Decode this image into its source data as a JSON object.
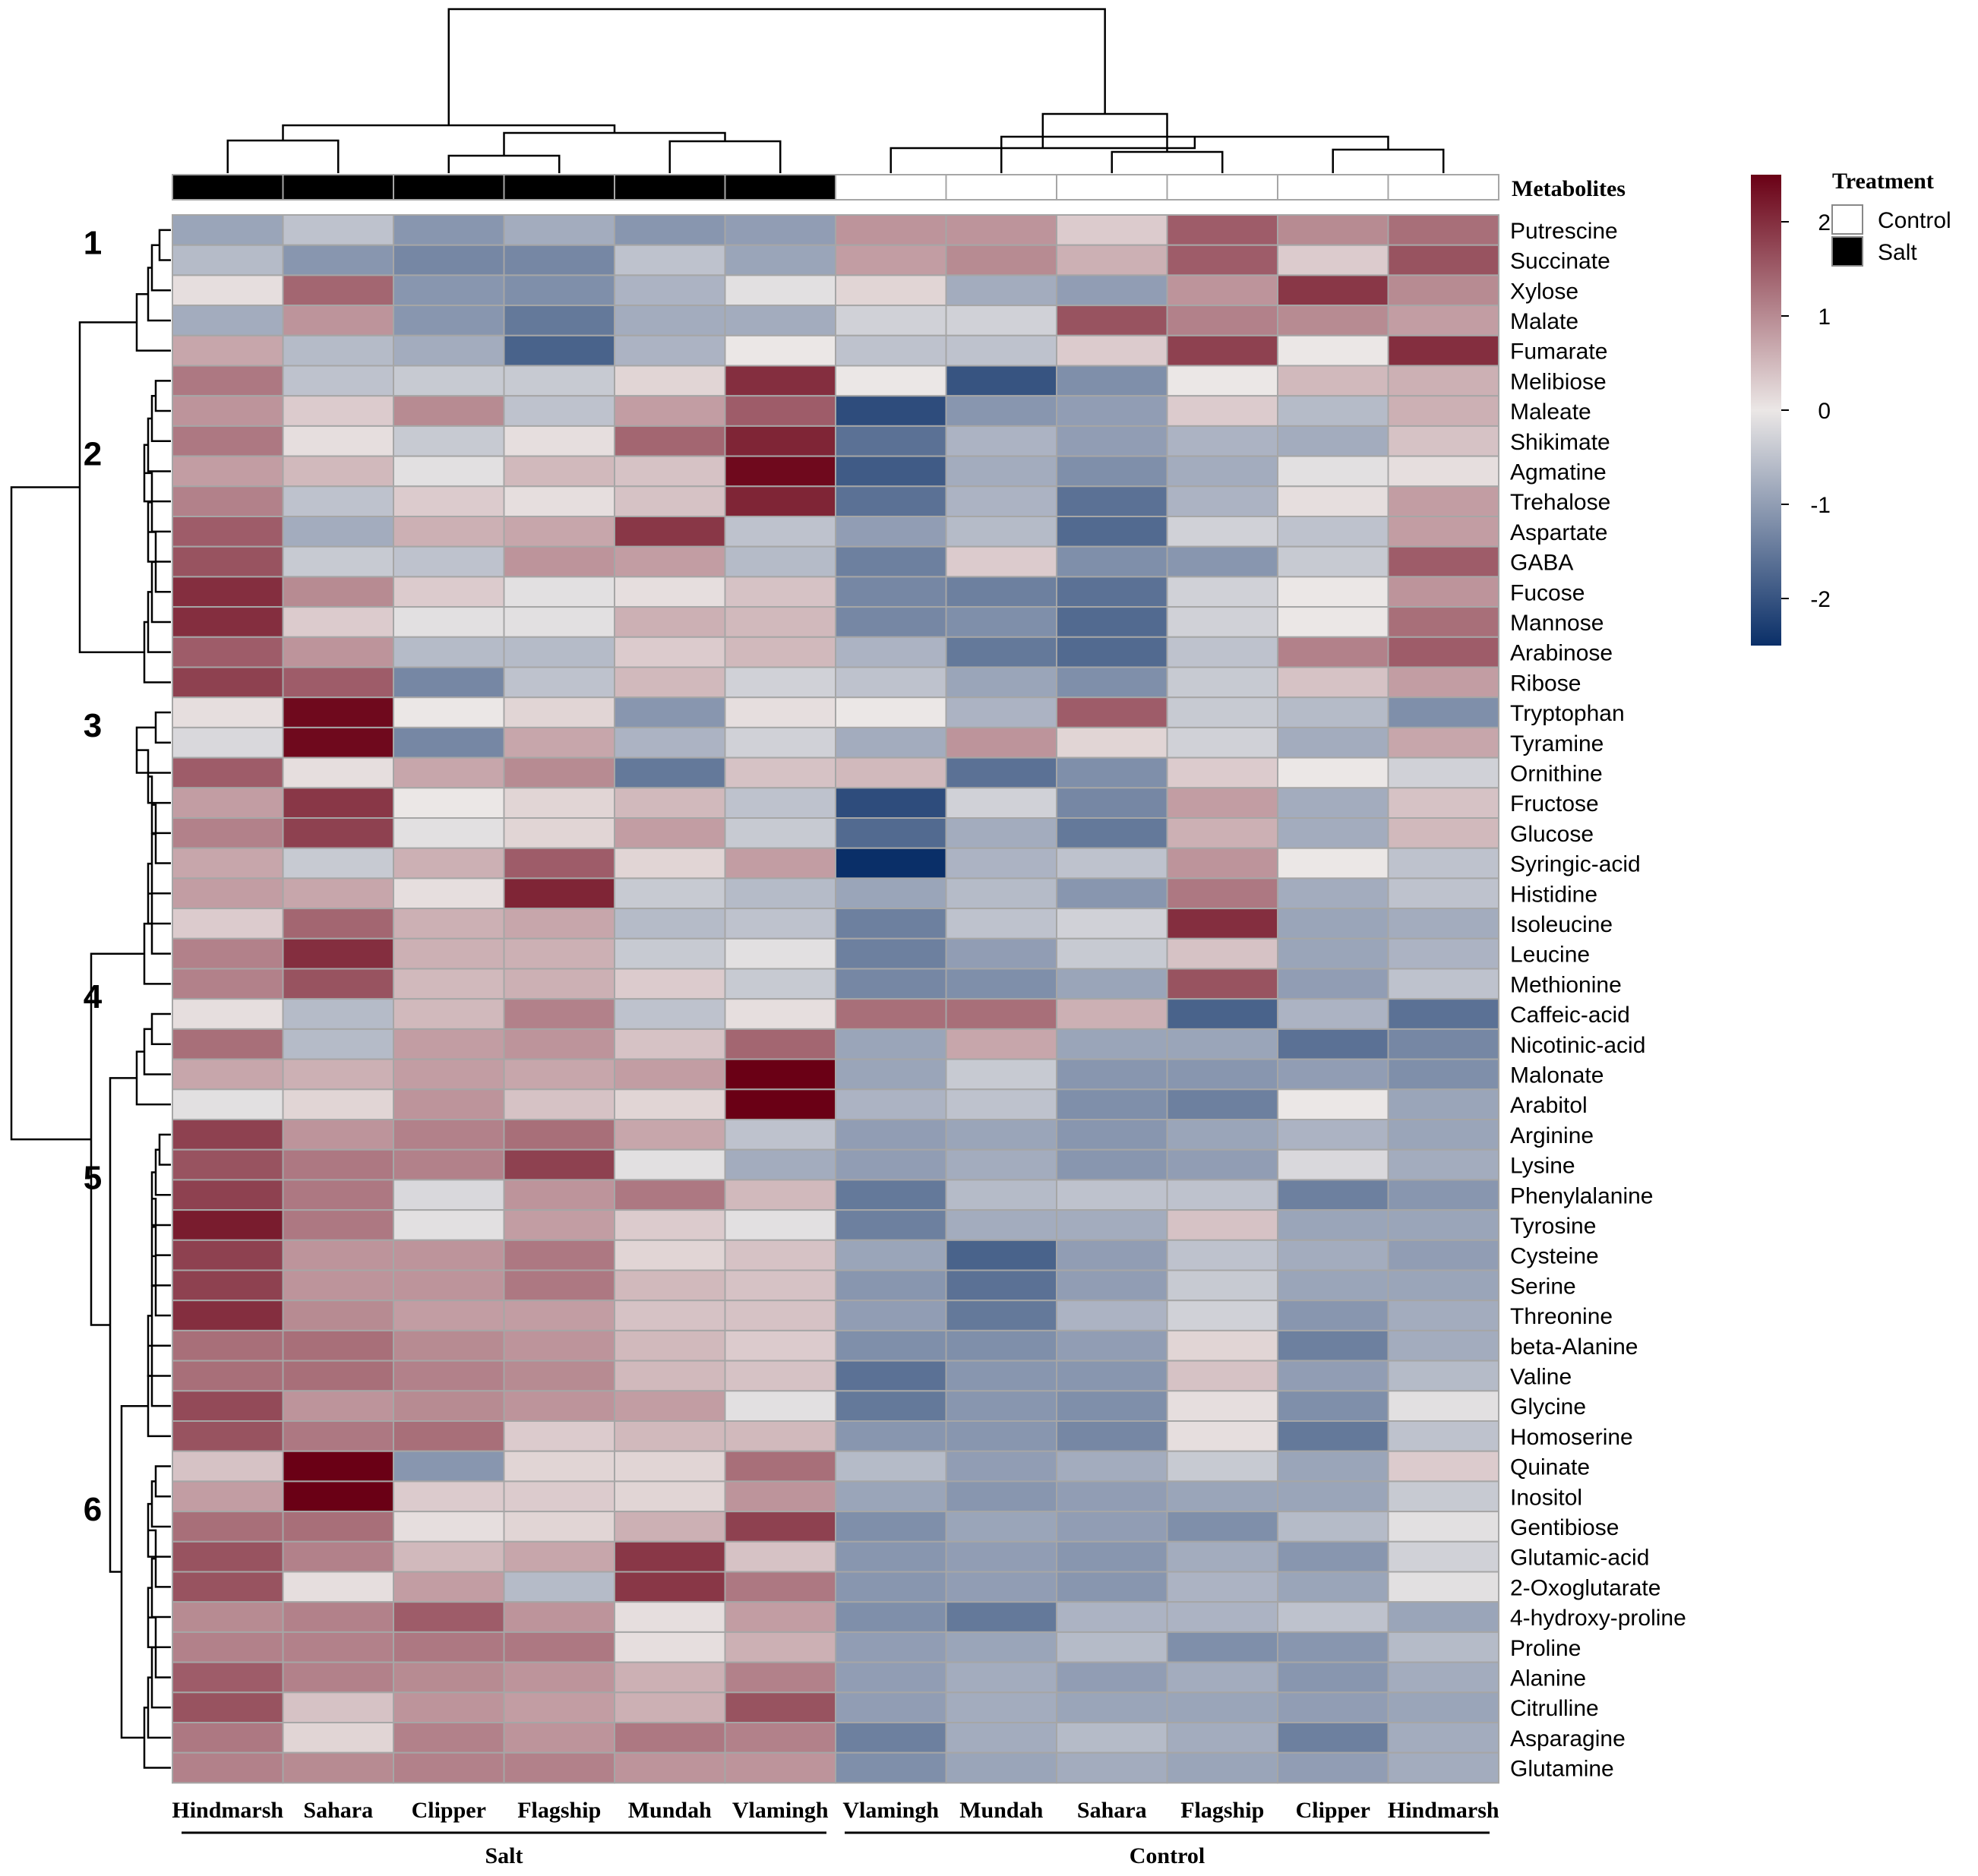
{
  "chart_data": {
    "type": "heatmap",
    "title": "",
    "annotation_header": "Metabolites",
    "legend": {
      "scale_ticks": [
        2,
        1,
        0,
        -1,
        -2
      ],
      "scale_min": -2.5,
      "scale_max": 2.5,
      "treatment_title": "Treatment",
      "treatment_items": [
        {
          "label": "Control",
          "color": "#ffffff"
        },
        {
          "label": "Salt",
          "color": "#000000"
        }
      ]
    },
    "colors": {
      "low": "#0a2f68",
      "mid": "#ebe7e6",
      "high": "#6a0015",
      "grid": "#a6a6a6"
    },
    "columns": [
      {
        "label": "Hindmarsh",
        "treatment": "Salt"
      },
      {
        "label": "Sahara",
        "treatment": "Salt"
      },
      {
        "label": "Clipper",
        "treatment": "Salt"
      },
      {
        "label": "Flagship",
        "treatment": "Salt"
      },
      {
        "label": "Mundah",
        "treatment": "Salt"
      },
      {
        "label": "Vlamingh",
        "treatment": "Salt"
      },
      {
        "label": "Vlamingh",
        "treatment": "Control"
      },
      {
        "label": "Mundah",
        "treatment": "Control"
      },
      {
        "label": "Sahara",
        "treatment": "Control"
      },
      {
        "label": "Flagship",
        "treatment": "Control"
      },
      {
        "label": "Clipper",
        "treatment": "Control"
      },
      {
        "label": "Hindmarsh",
        "treatment": "Control"
      }
    ],
    "group_labels": [
      {
        "label": "Salt",
        "first_col": 0,
        "last_col": 5
      },
      {
        "label": "Control",
        "first_col": 6,
        "last_col": 11
      }
    ],
    "cluster_labels": [
      {
        "label": "1",
        "row": 1
      },
      {
        "label": "2",
        "row": 8
      },
      {
        "label": "3",
        "row": 17
      },
      {
        "label": "4",
        "row": 26
      },
      {
        "label": "5",
        "row": 32
      },
      {
        "label": "6",
        "row": 43
      }
    ],
    "rows": [
      "Putrescine",
      "Succinate",
      "Xylose",
      "Malate",
      "Fumarate",
      "Melibiose",
      "Maleate",
      "Shikimate",
      "Agmatine",
      "Trehalose",
      "Aspartate",
      "GABA",
      "Fucose",
      "Mannose",
      "Arabinose",
      "Ribose",
      "Tryptophan",
      "Tyramine",
      "Ornithine",
      "Fructose",
      "Glucose",
      "Syringic-acid",
      "Histidine",
      "Isoleucine",
      "Leucine",
      "Methionine",
      "Caffeic-acid",
      "Nicotinic-acid",
      "Malonate",
      "Arabitol",
      "Arginine",
      "Lysine",
      "Phenylalanine",
      "Tyrosine",
      "Cysteine",
      "Serine",
      "Threonine",
      "beta-Alanine",
      "Valine",
      "Glycine",
      "Homoserine",
      "Quinate",
      "Inositol",
      "Gentibiose",
      "Glutamic-acid",
      "2-Oxoglutarate",
      "4-hydroxy-proline",
      "Proline",
      "Alanine",
      "Citrulline",
      "Asparagine",
      "Glutamine"
    ],
    "values": [
      [
        -0.9,
        -0.5,
        -1.1,
        -0.8,
        -1.1,
        -1.0,
        0.9,
        0.9,
        0.3,
        1.5,
        1.0,
        1.3
      ],
      [
        -0.6,
        -1.1,
        -1.3,
        -1.3,
        -0.5,
        -0.9,
        0.8,
        1.0,
        0.6,
        1.5,
        0.3,
        1.6
      ],
      [
        0.1,
        1.4,
        -1.1,
        -1.2,
        -0.7,
        -0.1,
        0.2,
        -0.8,
        -1.0,
        0.9,
        1.9,
        1.0
      ],
      [
        -0.8,
        0.9,
        -1.1,
        -1.5,
        -0.8,
        -0.8,
        -0.3,
        -0.3,
        1.6,
        1.1,
        1.0,
        0.8
      ],
      [
        0.7,
        -0.6,
        -0.8,
        -1.8,
        -0.7,
        0.0,
        -0.5,
        -0.5,
        0.3,
        1.8,
        0.0,
        2.0
      ],
      [
        1.2,
        -0.5,
        -0.4,
        -0.4,
        0.2,
        2.0,
        0.0,
        -2.0,
        -1.2,
        0.0,
        0.5,
        0.6
      ],
      [
        0.9,
        0.3,
        1.0,
        -0.5,
        0.8,
        1.5,
        -2.1,
        -1.1,
        -1.0,
        0.3,
        -0.6,
        0.6
      ],
      [
        1.2,
        0.1,
        -0.4,
        0.1,
        1.4,
        2.1,
        -1.6,
        -0.7,
        -1.0,
        -0.7,
        -0.8,
        0.4
      ],
      [
        0.8,
        0.5,
        -0.1,
        0.5,
        0.4,
        2.4,
        -1.9,
        -0.8,
        -1.2,
        -0.8,
        -0.1,
        0.1
      ],
      [
        1.1,
        -0.5,
        0.3,
        0.1,
        0.4,
        2.1,
        -1.6,
        -0.7,
        -1.6,
        -0.7,
        0.1,
        0.8
      ],
      [
        1.5,
        -0.8,
        0.6,
        0.7,
        1.9,
        -0.5,
        -1.0,
        -0.6,
        -1.7,
        -0.3,
        -0.5,
        0.8
      ],
      [
        1.6,
        -0.4,
        -0.5,
        0.9,
        0.8,
        -0.6,
        -1.4,
        0.3,
        -1.2,
        -1.1,
        -0.4,
        1.5
      ],
      [
        2.0,
        1.0,
        0.3,
        -0.1,
        0.1,
        0.4,
        -1.3,
        -1.4,
        -1.6,
        -0.3,
        0.0,
        0.9
      ],
      [
        2.0,
        0.3,
        -0.1,
        -0.1,
        0.6,
        0.5,
        -1.3,
        -1.2,
        -1.7,
        -0.3,
        0.0,
        1.3
      ],
      [
        1.5,
        0.9,
        -0.6,
        -0.6,
        0.3,
        0.5,
        -0.7,
        -1.5,
        -1.7,
        -0.5,
        1.1,
        1.5
      ],
      [
        1.8,
        1.5,
        -1.3,
        -0.5,
        0.5,
        -0.3,
        -0.5,
        -0.9,
        -1.2,
        -0.4,
        0.4,
        0.8
      ],
      [
        0.1,
        2.4,
        0.0,
        0.2,
        -1.1,
        0.1,
        0.0,
        -0.7,
        1.5,
        -0.4,
        -0.6,
        -1.2
      ],
      [
        -0.2,
        2.4,
        -1.3,
        0.7,
        -0.7,
        -0.3,
        -0.8,
        0.9,
        0.2,
        -0.3,
        -0.8,
        0.7
      ],
      [
        1.5,
        0.1,
        0.7,
        1.0,
        -1.5,
        0.4,
        0.5,
        -1.6,
        -1.2,
        0.3,
        0.0,
        -0.3
      ],
      [
        0.8,
        1.9,
        0.0,
        0.2,
        0.5,
        -0.5,
        -2.1,
        -0.3,
        -1.3,
        0.8,
        -0.8,
        0.4
      ],
      [
        1.1,
        1.8,
        -0.1,
        0.2,
        0.8,
        -0.4,
        -1.7,
        -0.8,
        -1.5,
        0.6,
        -0.8,
        0.5
      ],
      [
        0.7,
        -0.4,
        0.6,
        1.5,
        0.2,
        0.8,
        -2.6,
        -0.7,
        -0.5,
        0.9,
        0.0,
        -0.5
      ],
      [
        0.8,
        0.7,
        0.1,
        2.1,
        -0.4,
        -0.6,
        -0.9,
        -0.6,
        -1.1,
        1.2,
        -0.8,
        -0.5
      ],
      [
        0.3,
        1.4,
        0.6,
        0.7,
        -0.6,
        -0.5,
        -1.4,
        -0.5,
        -0.3,
        2.0,
        -0.9,
        -0.8
      ],
      [
        1.1,
        2.0,
        0.6,
        0.6,
        -0.4,
        -0.1,
        -1.4,
        -1.0,
        -0.4,
        0.4,
        -0.9,
        -0.7
      ],
      [
        1.1,
        1.6,
        0.5,
        0.6,
        0.3,
        -0.4,
        -1.3,
        -1.2,
        -0.9,
        1.6,
        -1.0,
        -0.5
      ],
      [
        0.1,
        -0.6,
        0.5,
        1.1,
        -0.5,
        0.1,
        1.3,
        1.3,
        0.6,
        -1.8,
        -0.7,
        -1.6
      ],
      [
        1.3,
        -0.6,
        0.8,
        0.9,
        0.4,
        1.4,
        -0.9,
        0.7,
        -0.9,
        -0.9,
        -1.6,
        -1.3
      ],
      [
        0.7,
        0.6,
        0.8,
        0.7,
        0.8,
        2.5,
        -0.9,
        -0.4,
        -1.1,
        -1.1,
        -1.0,
        -1.2
      ],
      [
        -0.1,
        0.2,
        0.9,
        0.4,
        0.2,
        2.7,
        -0.7,
        -0.5,
        -1.2,
        -1.4,
        0.0,
        -0.9
      ],
      [
        1.8,
        0.9,
        1.1,
        1.3,
        0.7,
        -0.5,
        -1.0,
        -0.9,
        -1.1,
        -0.9,
        -0.7,
        -0.9
      ],
      [
        1.6,
        1.2,
        1.1,
        1.8,
        -0.1,
        -0.8,
        -1.0,
        -0.8,
        -1.1,
        -1.0,
        -0.2,
        -0.8
      ],
      [
        1.8,
        1.2,
        -0.2,
        0.9,
        1.2,
        0.5,
        -1.5,
        -0.6,
        -0.5,
        -0.5,
        -1.4,
        -1.1
      ],
      [
        2.2,
        1.2,
        -0.1,
        0.8,
        0.3,
        -0.1,
        -1.4,
        -0.8,
        -0.8,
        0.4,
        -0.9,
        -0.9
      ],
      [
        1.8,
        0.9,
        0.9,
        1.2,
        0.2,
        0.4,
        -0.9,
        -1.8,
        -1.0,
        -0.5,
        -0.8,
        -1.0
      ],
      [
        1.8,
        0.9,
        0.9,
        1.2,
        0.5,
        0.4,
        -1.1,
        -1.6,
        -1.0,
        -0.4,
        -0.9,
        -0.9
      ],
      [
        2.0,
        1.0,
        0.8,
        0.8,
        0.4,
        0.4,
        -1.0,
        -1.5,
        -0.7,
        -0.3,
        -1.1,
        -0.8
      ],
      [
        1.3,
        1.3,
        1.0,
        0.9,
        0.5,
        0.3,
        -1.2,
        -1.2,
        -1.0,
        0.2,
        -1.4,
        -0.8
      ],
      [
        1.3,
        1.3,
        1.1,
        1.0,
        0.5,
        0.4,
        -1.6,
        -1.1,
        -1.1,
        0.4,
        -1.0,
        -0.6
      ],
      [
        1.7,
        0.9,
        1.0,
        0.9,
        0.8,
        -0.1,
        -1.5,
        -1.1,
        -1.2,
        0.1,
        -1.2,
        -0.1
      ],
      [
        1.6,
        1.2,
        1.3,
        0.3,
        0.5,
        0.5,
        -1.1,
        -1.1,
        -1.3,
        0.1,
        -1.5,
        -0.5
      ],
      [
        0.4,
        2.5,
        -1.1,
        0.2,
        0.2,
        1.3,
        -0.6,
        -1.0,
        -0.8,
        -0.4,
        -0.9,
        0.3
      ],
      [
        0.8,
        2.5,
        0.3,
        0.3,
        0.2,
        0.9,
        -0.9,
        -1.1,
        -1.0,
        -0.9,
        -0.9,
        -0.4
      ],
      [
        1.3,
        1.3,
        0.1,
        0.2,
        0.6,
        1.8,
        -1.2,
        -0.9,
        -1.0,
        -1.2,
        -0.6,
        -0.1
      ],
      [
        1.6,
        1.1,
        0.5,
        0.7,
        1.9,
        0.4,
        -1.1,
        -1.0,
        -1.1,
        -0.8,
        -1.1,
        -0.3
      ],
      [
        1.6,
        0.1,
        0.8,
        -0.6,
        1.9,
        1.2,
        -1.1,
        -1.0,
        -1.1,
        -0.7,
        -0.9,
        -0.1
      ],
      [
        1.0,
        1.1,
        1.5,
        0.9,
        0.1,
        0.8,
        -1.2,
        -1.5,
        -0.7,
        -0.7,
        -0.5,
        -0.9
      ],
      [
        1.1,
        1.1,
        1.2,
        1.2,
        0.1,
        0.6,
        -1.0,
        -0.9,
        -0.6,
        -1.2,
        -1.1,
        -0.6
      ],
      [
        1.5,
        1.1,
        1.0,
        0.9,
        0.6,
        1.1,
        -1.0,
        -0.8,
        -1.0,
        -0.8,
        -1.1,
        -0.8
      ],
      [
        1.6,
        0.4,
        0.9,
        0.8,
        0.6,
        1.6,
        -1.0,
        -0.8,
        -0.9,
        -0.9,
        -1.0,
        -0.9
      ],
      [
        1.2,
        0.2,
        1.1,
        0.9,
        1.2,
        1.1,
        -1.4,
        -0.8,
        -0.6,
        -0.8,
        -1.4,
        -0.8
      ],
      [
        1.1,
        1.0,
        1.1,
        1.1,
        0.9,
        0.9,
        -1.2,
        -0.9,
        -0.8,
        -0.9,
        -1.0,
        -0.8
      ]
    ]
  }
}
